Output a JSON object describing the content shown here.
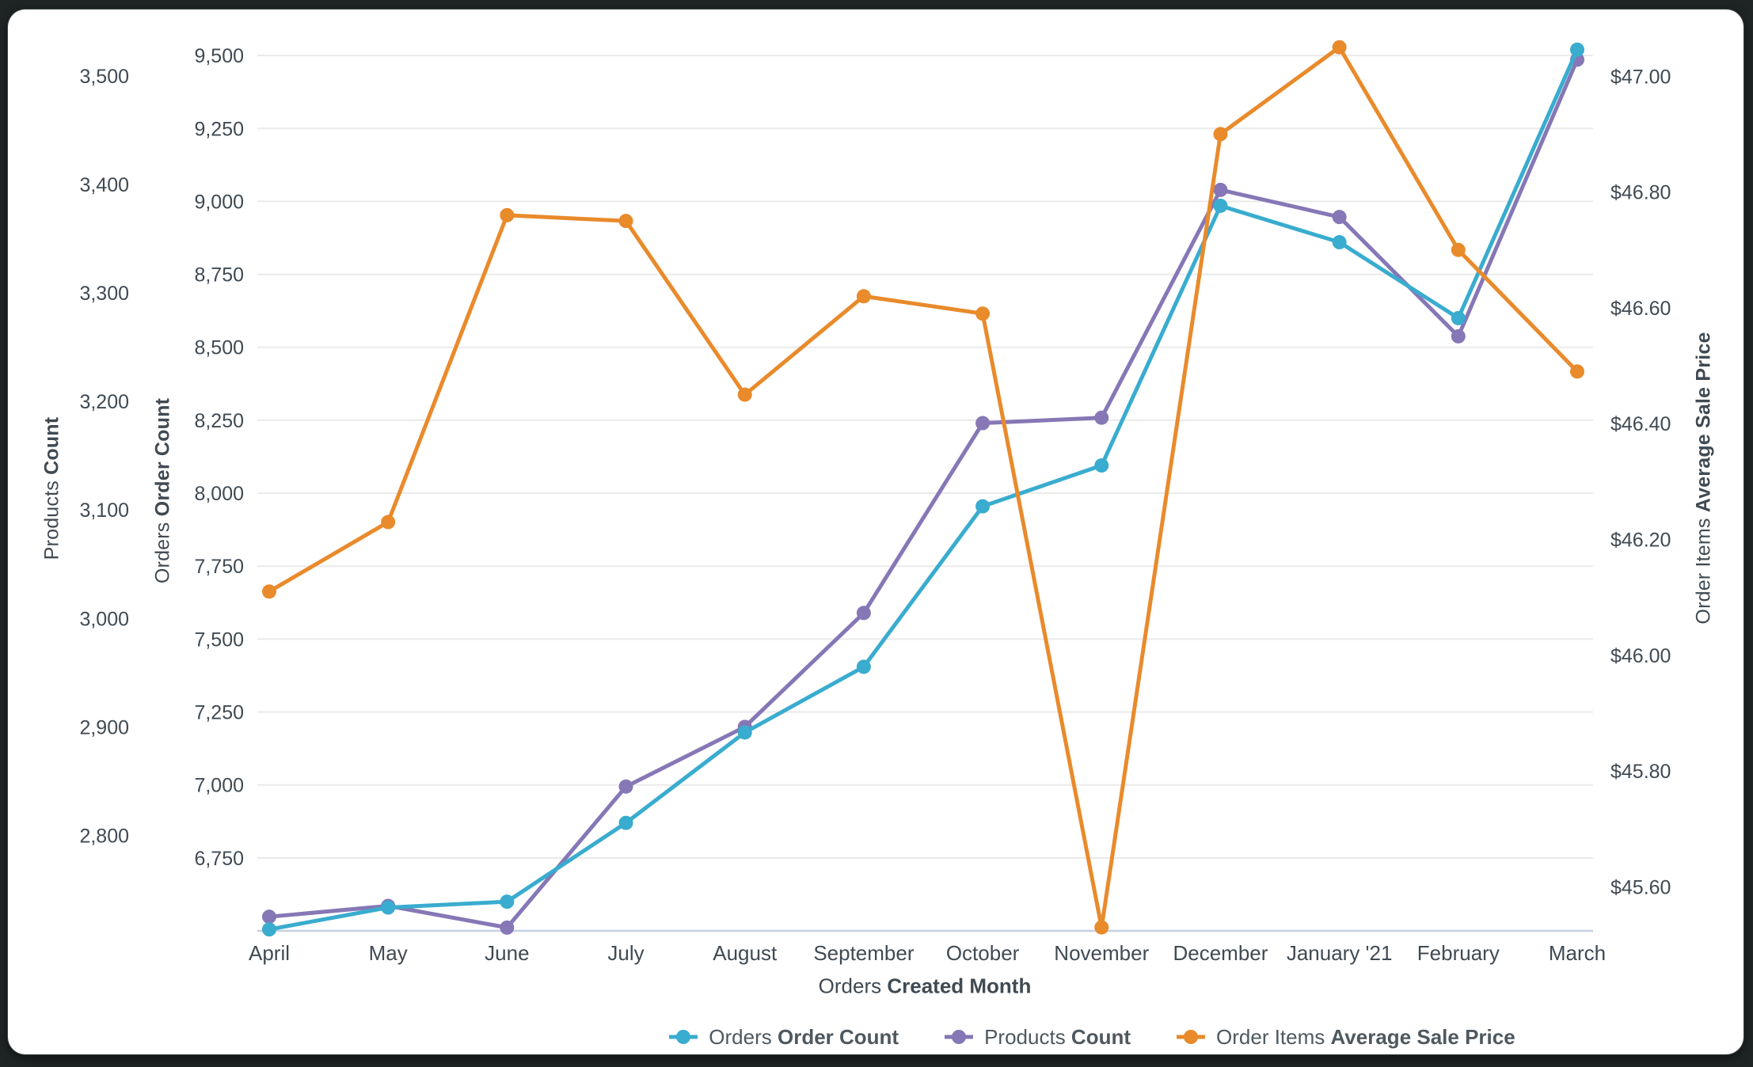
{
  "chart_data": {
    "type": "line",
    "title": "",
    "legend_position": "bottom",
    "grid": "horizontal",
    "x_axis": {
      "title_regular": "Orders",
      "title_bold": "Created Month"
    },
    "months": [
      "April",
      "May",
      "June",
      "July",
      "August",
      "September",
      "October",
      "November",
      "December",
      "January '21",
      "February",
      "March"
    ],
    "series": [
      {
        "id": "orders-order-count",
        "label_regular": "Orders",
        "label_bold": "Order Count",
        "color": "#39ACCF",
        "axis": "orders",
        "values": [
          6505,
          6580,
          6600,
          6870,
          7180,
          7405,
          7955,
          8095,
          8985,
          8860,
          8600,
          9520
        ]
      },
      {
        "id": "products-count",
        "label_regular": "Products",
        "label_bold": "Count",
        "color": "#8677B6",
        "axis": "products",
        "values": [
          2725,
          2735,
          2715,
          2845,
          2900,
          3005,
          3180,
          3185,
          3395,
          3370,
          3260,
          3515
        ]
      },
      {
        "id": "order-items-average-sale-price",
        "label_regular": "Order Items",
        "label_bold": "Average Sale Price",
        "color": "#E98A2B",
        "axis": "price",
        "values": [
          46.11,
          46.23,
          46.76,
          46.75,
          46.45,
          46.62,
          46.59,
          45.53,
          46.9,
          47.05,
          46.7,
          46.49
        ]
      }
    ],
    "axes": {
      "products": {
        "title_regular": "Products",
        "title_bold": "Count",
        "title_color": "#7767AA",
        "range": [
          2712,
          3535
        ],
        "ticks": [
          {
            "v": 2800,
            "label": "2,800"
          },
          {
            "v": 2900,
            "label": "2,900"
          },
          {
            "v": 3000,
            "label": "3,000"
          },
          {
            "v": 3100,
            "label": "3,100"
          },
          {
            "v": 3200,
            "label": "3,200"
          },
          {
            "v": 3300,
            "label": "3,300"
          },
          {
            "v": 3400,
            "label": "3,400"
          },
          {
            "v": 3500,
            "label": "3,500"
          }
        ]
      },
      "orders": {
        "title_regular": "Orders",
        "title_bold": "Order Count",
        "title_color": "#2EA7CD",
        "range": [
          6500,
          9560
        ],
        "ticks": [
          {
            "v": 6750,
            "label": "6,750"
          },
          {
            "v": 7000,
            "label": "7,000"
          },
          {
            "v": 7250,
            "label": "7,250"
          },
          {
            "v": 7500,
            "label": "7,500"
          },
          {
            "v": 7750,
            "label": "7,750"
          },
          {
            "v": 8000,
            "label": "8,000"
          },
          {
            "v": 8250,
            "label": "8,250"
          },
          {
            "v": 8500,
            "label": "8,500"
          },
          {
            "v": 8750,
            "label": "8,750"
          },
          {
            "v": 9000,
            "label": "9,000"
          },
          {
            "v": 9250,
            "label": "9,250"
          },
          {
            "v": 9500,
            "label": "9,500"
          }
        ]
      },
      "price": {
        "title_regular": "Order Items",
        "title_bold": "Average Sale Price",
        "title_color": "#E8862C",
        "range": [
          45.524,
          47.066
        ],
        "ticks": [
          {
            "v": 45.6,
            "label": "$45.60"
          },
          {
            "v": 45.8,
            "label": "$45.80"
          },
          {
            "v": 46.0,
            "label": "$46.00"
          },
          {
            "v": 46.2,
            "label": "$46.20"
          },
          {
            "v": 46.4,
            "label": "$46.40"
          },
          {
            "v": 46.6,
            "label": "$46.60"
          },
          {
            "v": 46.8,
            "label": "$46.80"
          },
          {
            "v": 47.0,
            "label": "$47.00"
          }
        ]
      }
    },
    "style": {
      "gridline_color": "#EAEAEA",
      "baseline_color": "#C6D0E4",
      "tick_text_color": "#404A53",
      "card_background": "#FFFFFF",
      "frame_background": "#1F2425"
    }
  }
}
